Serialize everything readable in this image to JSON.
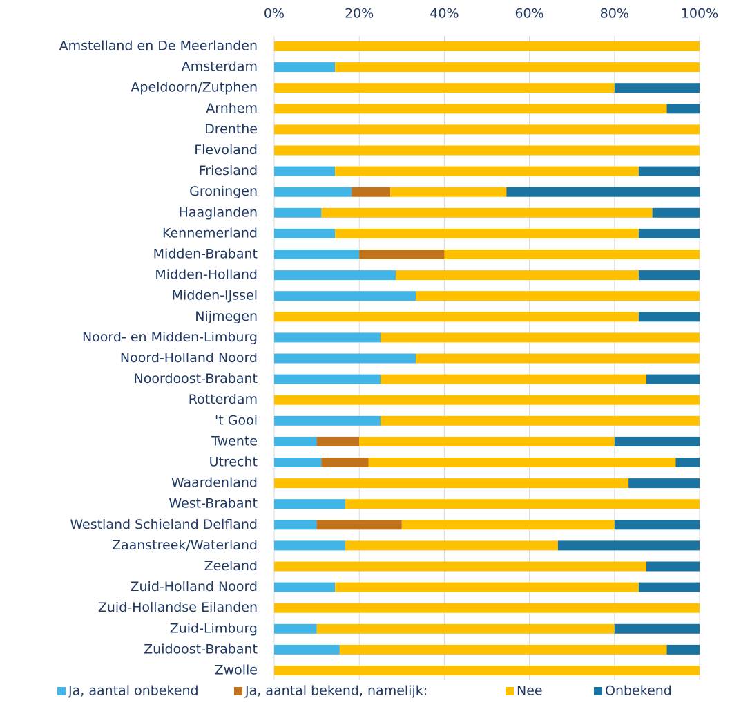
{
  "chart_data": {
    "type": "stacked_barh",
    "categories": [
      "Amstelland en De Meerlanden",
      "Amsterdam",
      "Apeldoorn/Zutphen",
      "Arnhem",
      "Drenthe",
      "Flevoland",
      "Friesland",
      "Groningen",
      "Haaglanden",
      "Kennemerland",
      "Midden-Brabant",
      "Midden-Holland",
      "Midden-IJssel",
      "Nijmegen",
      "Noord- en Midden-Limburg",
      "Noord-Holland Noord",
      "Noordoost-Brabant",
      "Rotterdam",
      "'t Gooi",
      "Twente",
      "Utrecht",
      "Waardenland",
      "West-Brabant",
      "Westland Schieland Delfland",
      "Zaanstreek/Waterland",
      "Zeeland",
      "Zuid-Holland Noord",
      "Zuid-Hollandse Eilanden",
      "Zuid-Limburg",
      "Zuidoost-Brabant",
      "Zwolle"
    ],
    "series": [
      {
        "name": "Ja, aantal onbekend",
        "color": "#41b6e6",
        "values": [
          0,
          14.3,
          0,
          0,
          0,
          0,
          14.3,
          18.2,
          11.1,
          14.3,
          20,
          28.6,
          33.3,
          0,
          25,
          33.3,
          25,
          0,
          25,
          10,
          11.1,
          0,
          16.7,
          10,
          16.7,
          0,
          14.3,
          0,
          10,
          15.4,
          0
        ]
      },
      {
        "name": "Ja, aantal bekend, namelijk:",
        "color": "#c0731b",
        "values": [
          0,
          0,
          0,
          0,
          0,
          0,
          0,
          9.1,
          0,
          0,
          20,
          0,
          0,
          0,
          0,
          0,
          0,
          0,
          0,
          10,
          11.1,
          0,
          0,
          20,
          0,
          0,
          0,
          0,
          0,
          0,
          0
        ]
      },
      {
        "name": "Nee",
        "color": "#ffc000",
        "values": [
          100,
          85.7,
          80,
          92.3,
          100,
          100,
          71.4,
          27.3,
          77.8,
          71.4,
          60,
          57.1,
          66.7,
          85.7,
          75,
          66.7,
          62.5,
          100,
          75,
          60,
          72.2,
          83.3,
          83.3,
          50,
          50,
          87.5,
          71.4,
          100,
          70,
          76.9,
          100
        ]
      },
      {
        "name": "Onbekend",
        "color": "#1a73a0",
        "values": [
          0,
          0,
          20,
          7.7,
          0,
          0,
          14.3,
          45.5,
          11.1,
          14.3,
          0,
          14.3,
          0,
          14.3,
          0,
          0,
          12.5,
          0,
          0,
          20,
          5.6,
          16.7,
          0,
          20,
          33.3,
          12.5,
          14.3,
          0,
          20,
          7.7,
          0
        ]
      }
    ],
    "xlim": [
      0,
      100
    ],
    "xticks": [
      {
        "value": 0,
        "label": "0%"
      },
      {
        "value": 20,
        "label": "20%"
      },
      {
        "value": 40,
        "label": "40%"
      },
      {
        "value": 60,
        "label": "60%"
      },
      {
        "value": 80,
        "label": "80%"
      },
      {
        "value": 100,
        "label": "100%"
      }
    ],
    "grid": true,
    "legend": "bottom"
  }
}
